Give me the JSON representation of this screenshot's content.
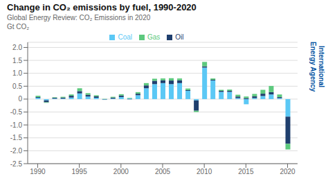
{
  "chart_data": {
    "type": "bar",
    "title": "Change in CO₂ emissions by fuel, 1990-2020",
    "subtitle": "Global Energy Review: CO₂ Emissions in 2020",
    "y_label": "Gt CO₂",
    "x": [
      1990,
      1991,
      1992,
      1993,
      1994,
      1995,
      1996,
      1997,
      1998,
      1999,
      2000,
      2001,
      2002,
      2003,
      2004,
      2005,
      2006,
      2007,
      2008,
      2009,
      2010,
      2011,
      2012,
      2013,
      2014,
      2015,
      2016,
      2017,
      2018,
      2019,
      2020
    ],
    "series": [
      {
        "name": "Coal",
        "color": "#5BC8F5",
        "values": [
          0.05,
          -0.05,
          0.02,
          0.02,
          0.06,
          0.22,
          0.1,
          0.05,
          -0.02,
          0.02,
          0.08,
          0.03,
          0.15,
          0.42,
          0.58,
          0.62,
          0.58,
          0.62,
          0.32,
          -0.05,
          1.22,
          0.72,
          0.28,
          0.28,
          0.04,
          -0.2,
          0.04,
          0.12,
          0.18,
          0.04,
          -0.68
        ]
      },
      {
        "name": "Oil",
        "color": "#1F3F6E",
        "values": [
          0.03,
          -0.07,
          0.03,
          0.04,
          0.07,
          0.09,
          0.07,
          0.06,
          -0.01,
          0.04,
          0.06,
          -0.01,
          0.06,
          0.11,
          0.13,
          0.11,
          0.14,
          0.11,
          0.03,
          -0.4,
          0.05,
          0.03,
          0.04,
          0.04,
          0.06,
          0.04,
          0.07,
          0.09,
          0.09,
          0.04,
          -1.05
        ]
      },
      {
        "name": "Gas",
        "color": "#5DC97E",
        "values": [
          0.05,
          -0.02,
          0.02,
          0.03,
          0.05,
          0.11,
          0.06,
          0.04,
          0.01,
          0.03,
          0.05,
          0.02,
          0.06,
          0.09,
          0.08,
          0.07,
          0.09,
          0.07,
          0.06,
          -0.05,
          0.17,
          0.05,
          0.04,
          0.05,
          0.07,
          0.06,
          0.09,
          0.15,
          0.24,
          0.1,
          -0.22
        ]
      }
    ],
    "stacked": true,
    "xlim": [
      1988.8,
      2021.2
    ],
    "xticks": [
      1990,
      1995,
      2000,
      2005,
      2010,
      2015,
      2020
    ],
    "ylim": [
      -2.5,
      2.2
    ],
    "yticks": [
      -2.5,
      {
        "value": -2.0,
        "label": "-2.0"
      },
      -1.5,
      {
        "value": -1.0,
        "label": "-1.0"
      },
      -0.5,
      0,
      0.5,
      {
        "value": 1.0,
        "label": "1.0"
      },
      1.5,
      {
        "value": 2.0,
        "label": "2.0"
      }
    ],
    "grid": true,
    "legend": "upper center",
    "annotations": [
      {
        "text": "International\nEnergy Agency",
        "color": "#0050A0"
      }
    ]
  }
}
